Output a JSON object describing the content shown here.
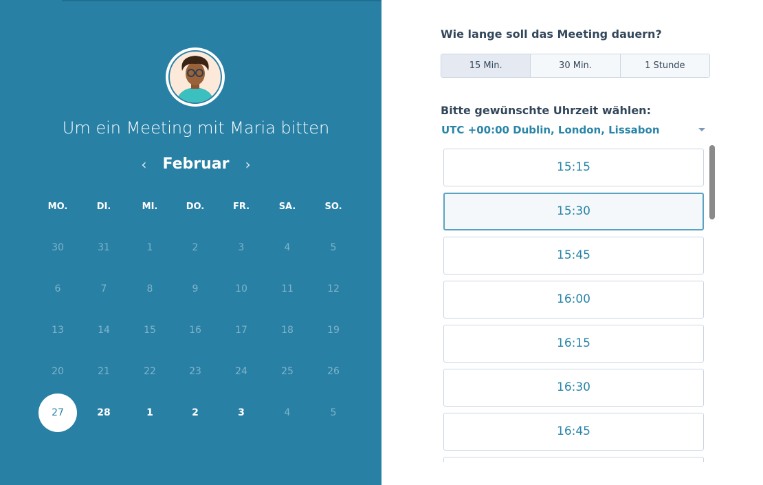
{
  "header": {
    "title": "Um ein Meeting mit Maria bitten",
    "month": "Februar",
    "prev_icon": "chevron-left-icon",
    "next_icon": "chevron-right-icon"
  },
  "calendar": {
    "weekdays": [
      "MO.",
      "DI.",
      "MI.",
      "DO.",
      "FR.",
      "SA.",
      "SO."
    ],
    "weeks": [
      [
        {
          "d": "30",
          "s": "dis"
        },
        {
          "d": "31",
          "s": "dis"
        },
        {
          "d": "1",
          "s": "dis"
        },
        {
          "d": "2",
          "s": "dis"
        },
        {
          "d": "3",
          "s": "dis"
        },
        {
          "d": "4",
          "s": "dis"
        },
        {
          "d": "5",
          "s": "dis"
        }
      ],
      [
        {
          "d": "6",
          "s": "dis"
        },
        {
          "d": "7",
          "s": "dis"
        },
        {
          "d": "8",
          "s": "dis"
        },
        {
          "d": "9",
          "s": "dis"
        },
        {
          "d": "10",
          "s": "dis"
        },
        {
          "d": "11",
          "s": "dis"
        },
        {
          "d": "12",
          "s": "dis"
        }
      ],
      [
        {
          "d": "13",
          "s": "dis"
        },
        {
          "d": "14",
          "s": "dis"
        },
        {
          "d": "15",
          "s": "dis"
        },
        {
          "d": "16",
          "s": "dis"
        },
        {
          "d": "17",
          "s": "dis"
        },
        {
          "d": "18",
          "s": "dis"
        },
        {
          "d": "19",
          "s": "dis"
        }
      ],
      [
        {
          "d": "20",
          "s": "dis"
        },
        {
          "d": "21",
          "s": "dis"
        },
        {
          "d": "22",
          "s": "dis"
        },
        {
          "d": "23",
          "s": "dis"
        },
        {
          "d": "24",
          "s": "dis"
        },
        {
          "d": "25",
          "s": "dis"
        },
        {
          "d": "26",
          "s": "dis"
        }
      ],
      [
        {
          "d": "27",
          "s": "sel"
        },
        {
          "d": "28",
          "s": "en"
        },
        {
          "d": "1",
          "s": "en"
        },
        {
          "d": "2",
          "s": "en"
        },
        {
          "d": "3",
          "s": "en"
        },
        {
          "d": "4",
          "s": "dis"
        },
        {
          "d": "5",
          "s": "dis"
        }
      ]
    ]
  },
  "duration": {
    "question": "Wie lange soll das Meeting dauern?",
    "options": [
      "15 Min.",
      "30 Min.",
      "1 Stunde"
    ],
    "selected": 0
  },
  "time": {
    "question": "Bitte gewünschte Uhrzeit wählen:",
    "timezone": "UTC +00:00 Dublin, London, Lissabon",
    "slots": [
      "15:15",
      "15:30",
      "15:45",
      "16:00",
      "16:15",
      "16:30",
      "16:45",
      ""
    ],
    "selected": 1
  },
  "colors": {
    "panel": "#2980a5",
    "accent": "#2985a8",
    "text": "#33475b"
  }
}
